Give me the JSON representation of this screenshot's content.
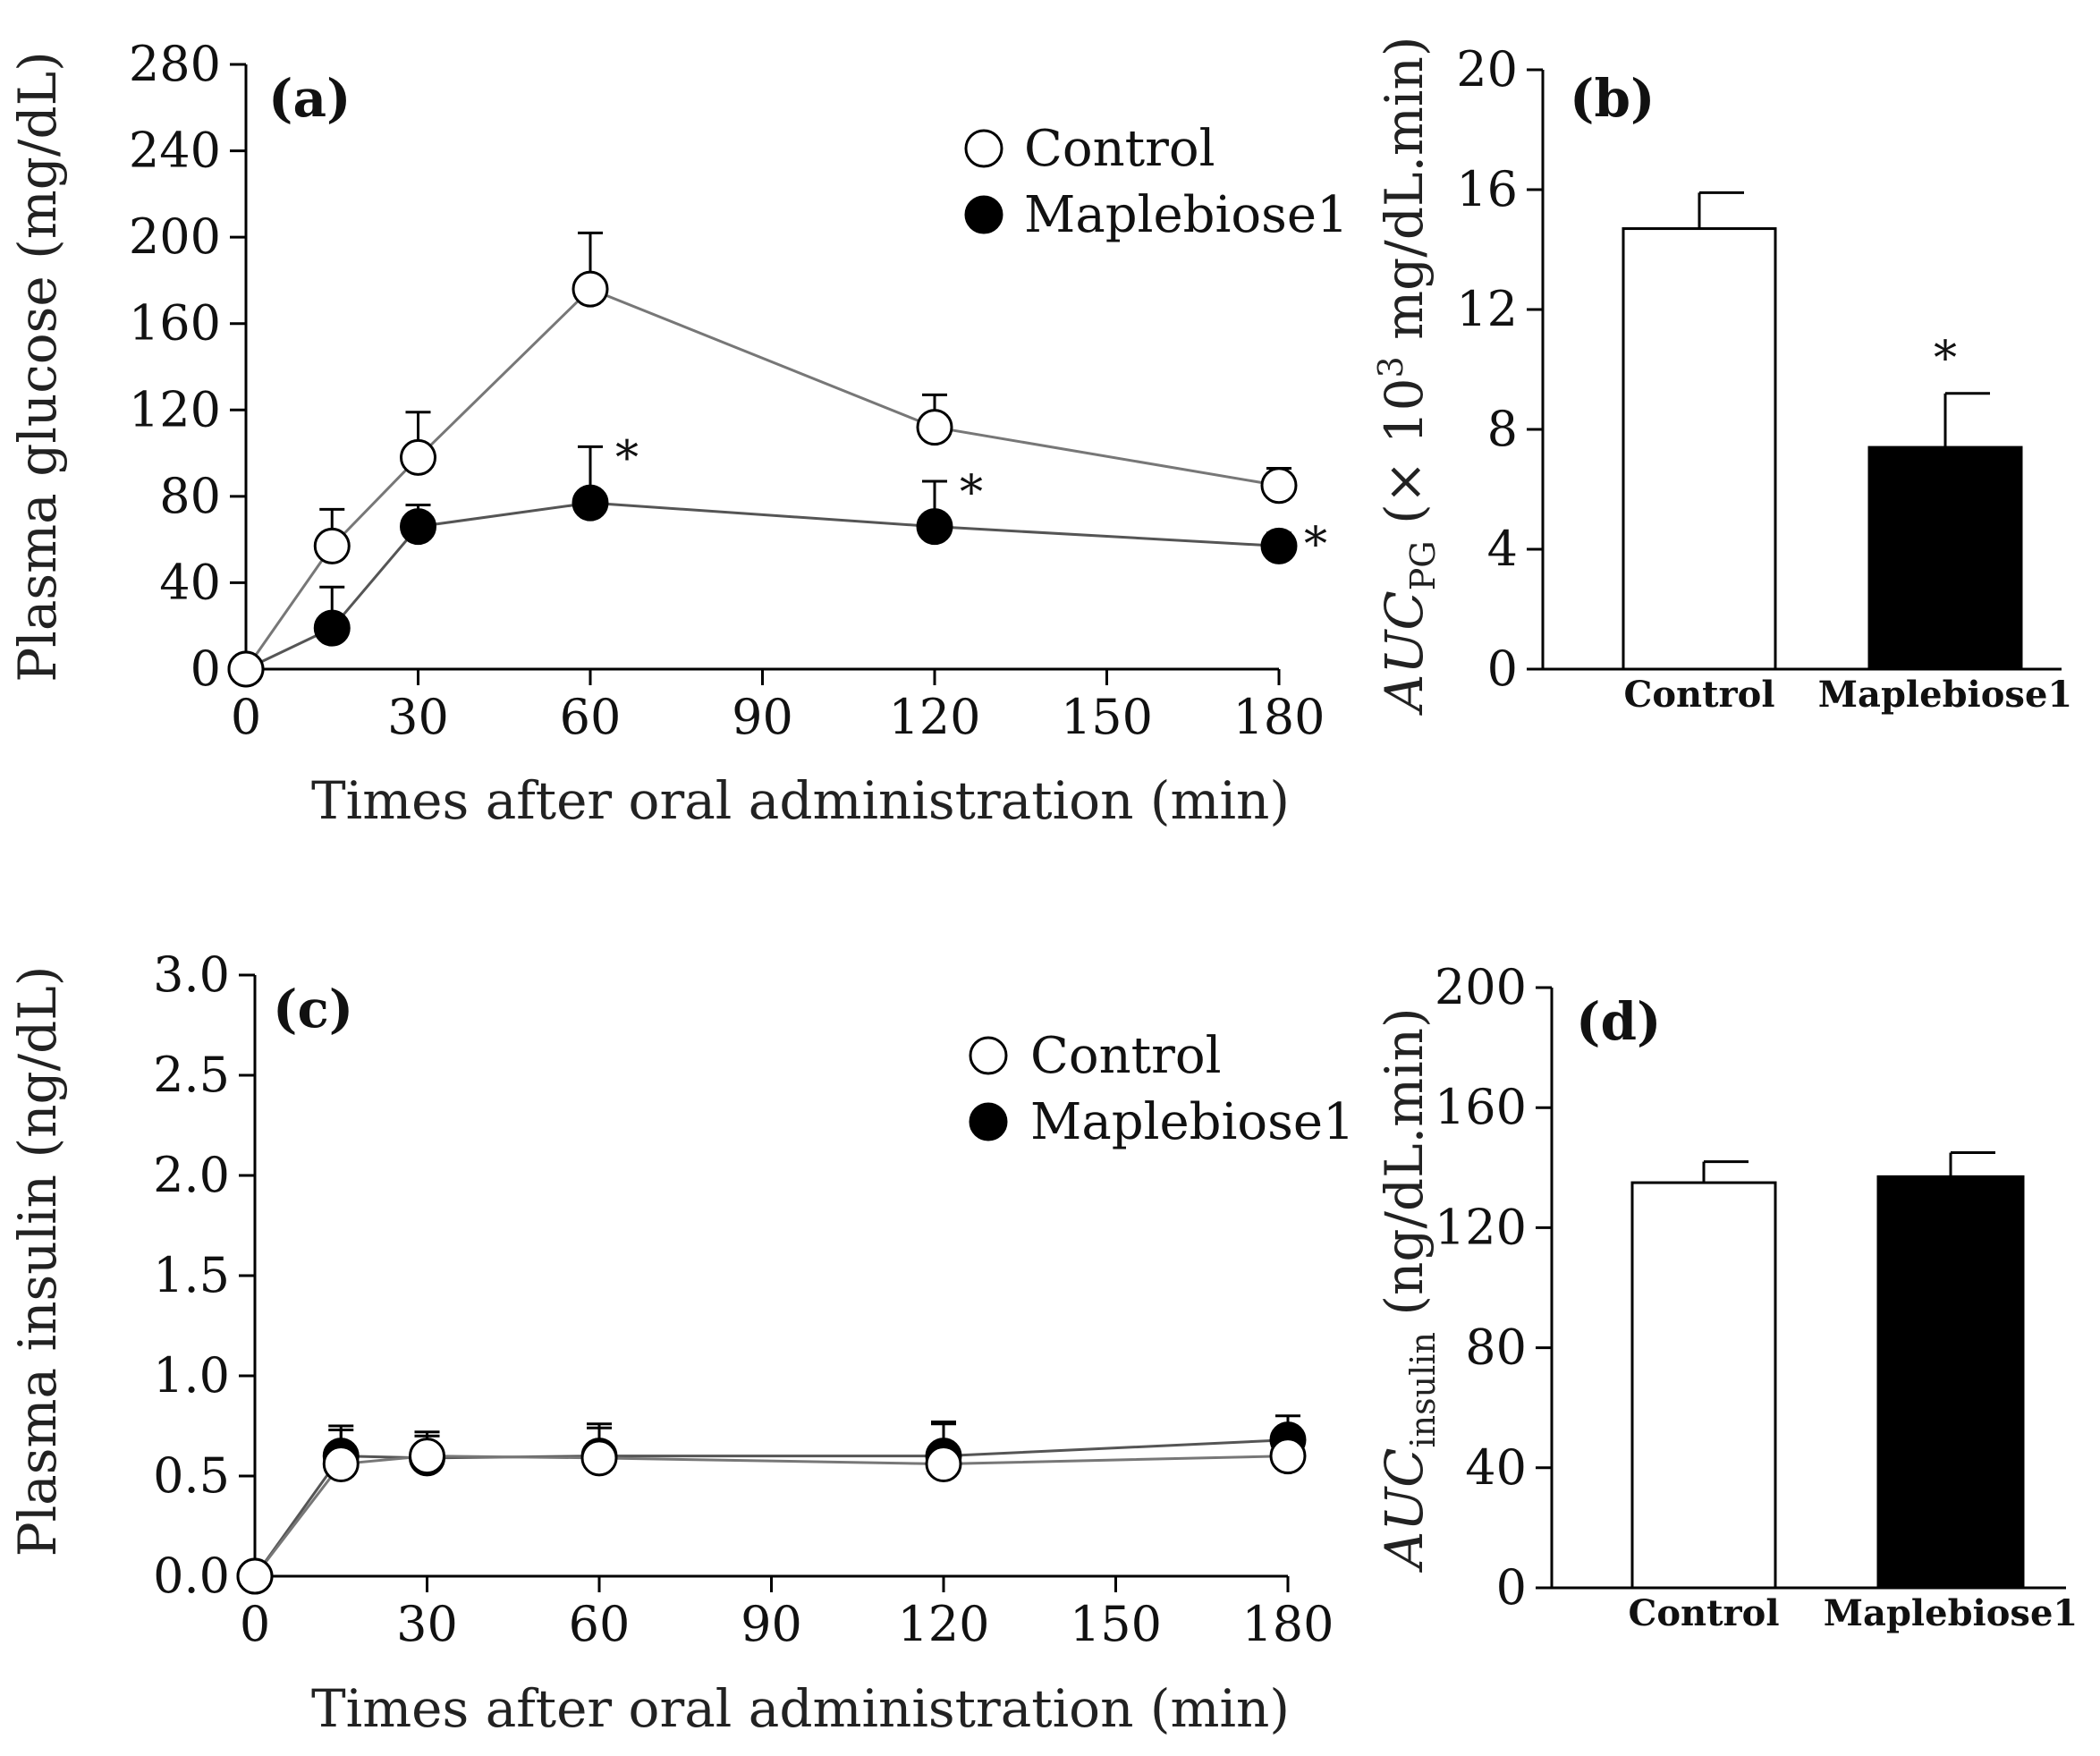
{
  "chart_data": [
    {
      "id": "a",
      "type": "line",
      "panel_label": "(a)",
      "xlabel": "Times after oral administration  (min)",
      "ylabel": "Plasma glucose  (mg/dL)",
      "xlim": [
        0,
        180
      ],
      "ylim": [
        0,
        280
      ],
      "xticks": [
        "0",
        "30",
        "60",
        "90",
        "120",
        "150",
        "180"
      ],
      "yticks": [
        "0",
        "40",
        "80",
        "120",
        "160",
        "200",
        "240",
        "280"
      ],
      "x": [
        0,
        15,
        30,
        60,
        120,
        180
      ],
      "series": [
        {
          "name": "Control",
          "marker": "open",
          "values": [
            0,
            57,
            98,
            176,
            112,
            85
          ],
          "errors": [
            0,
            17,
            21,
            26,
            15,
            8
          ]
        },
        {
          "name": "Maplebiose1",
          "marker": "filled",
          "values": [
            0,
            19,
            66,
            77,
            66,
            57
          ],
          "errors": [
            0,
            19,
            10,
            26,
            21,
            6
          ]
        }
      ],
      "significance": [
        {
          "x": 60,
          "label": "*"
        },
        {
          "x": 120,
          "label": "*"
        },
        {
          "x": 180,
          "label": "*"
        }
      ],
      "legend": "top-right"
    },
    {
      "id": "b",
      "type": "bar",
      "panel_label": "(b)",
      "ylabel_parts": {
        "main": "AUC",
        "sub": "PG",
        "rest_pre": " (× 10",
        "sup": "3",
        "rest_post": " mg/dL.min)"
      },
      "ylim": [
        0,
        20
      ],
      "yticks": [
        "0",
        "4",
        "8",
        "12",
        "16",
        "20"
      ],
      "categories": [
        "Control",
        "Maplebiose1"
      ],
      "values": [
        14.7,
        7.4
      ],
      "errors": [
        1.2,
        1.8
      ],
      "fills": [
        "#ffffff",
        "#000000"
      ],
      "significance": [
        {
          "category": "Maplebiose1",
          "label": "*"
        }
      ]
    },
    {
      "id": "c",
      "type": "line",
      "panel_label": "(c)",
      "xlabel": "Times after oral administration  (min)",
      "ylabel": "Plasma insulin  (ng/dL)",
      "xlim": [
        0,
        180
      ],
      "ylim": [
        0,
        3.0
      ],
      "xticks": [
        "0",
        "30",
        "60",
        "90",
        "120",
        "150",
        "180"
      ],
      "yticks": [
        "0.0",
        "0.5",
        "1.0",
        "1.5",
        "2.0",
        "2.5",
        "3.0"
      ],
      "x": [
        0,
        15,
        30,
        60,
        120,
        180
      ],
      "series": [
        {
          "name": "Control",
          "marker": "open",
          "values": [
            0,
            0.56,
            0.6,
            0.59,
            0.56,
            0.6
          ],
          "errors": [
            0,
            0.17,
            0.12,
            0.15,
            0.2,
            0.1
          ]
        },
        {
          "name": "Maplebiose1",
          "marker": "filled",
          "values": [
            0,
            0.6,
            0.59,
            0.6,
            0.6,
            0.68
          ],
          "errors": [
            0,
            0.15,
            0.11,
            0.16,
            0.17,
            0.12
          ]
        }
      ],
      "legend": "top-right"
    },
    {
      "id": "d",
      "type": "bar",
      "panel_label": "(d)",
      "ylabel_parts": {
        "main": "AUC",
        "sub": "insulin",
        "rest": " (ng/dL.min)"
      },
      "ylim": [
        0,
        200
      ],
      "yticks": [
        "0",
        "40",
        "80",
        "120",
        "160",
        "200"
      ],
      "categories": [
        "Control",
        "Maplebiose1"
      ],
      "values": [
        135,
        137
      ],
      "errors": [
        7,
        8
      ],
      "fills": [
        "#ffffff",
        "#000000"
      ]
    }
  ]
}
